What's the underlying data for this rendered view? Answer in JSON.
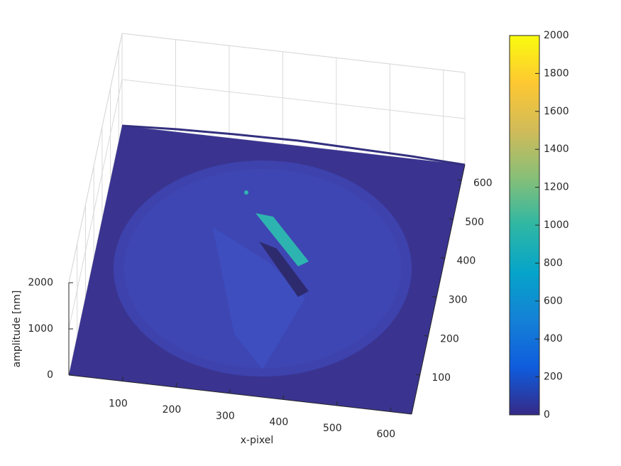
{
  "chart_data": {
    "type": "surface",
    "xlabel": "x-pixel",
    "zlabel": "amplitude [nm]",
    "xlim": [
      0,
      640
    ],
    "ylim": [
      0,
      640
    ],
    "zlim": [
      0,
      2000
    ],
    "xticks": [
      100,
      200,
      300,
      400,
      500,
      600
    ],
    "yticks": [
      100,
      200,
      300,
      400,
      500,
      600
    ],
    "zticks": [
      0,
      1000,
      2000
    ],
    "grid": true,
    "colorbar": {
      "lim": [
        0,
        2000
      ],
      "ticks": [
        0,
        200,
        400,
        600,
        800,
        1000,
        1200,
        1400,
        1600,
        1800,
        2000
      ],
      "colormap": [
        "#352a87",
        "#0f5cdd",
        "#1481d6",
        "#06a4ca",
        "#2eb7a4",
        "#87bf77",
        "#d1bb59",
        "#fec832",
        "#f9fb0e"
      ]
    }
  }
}
